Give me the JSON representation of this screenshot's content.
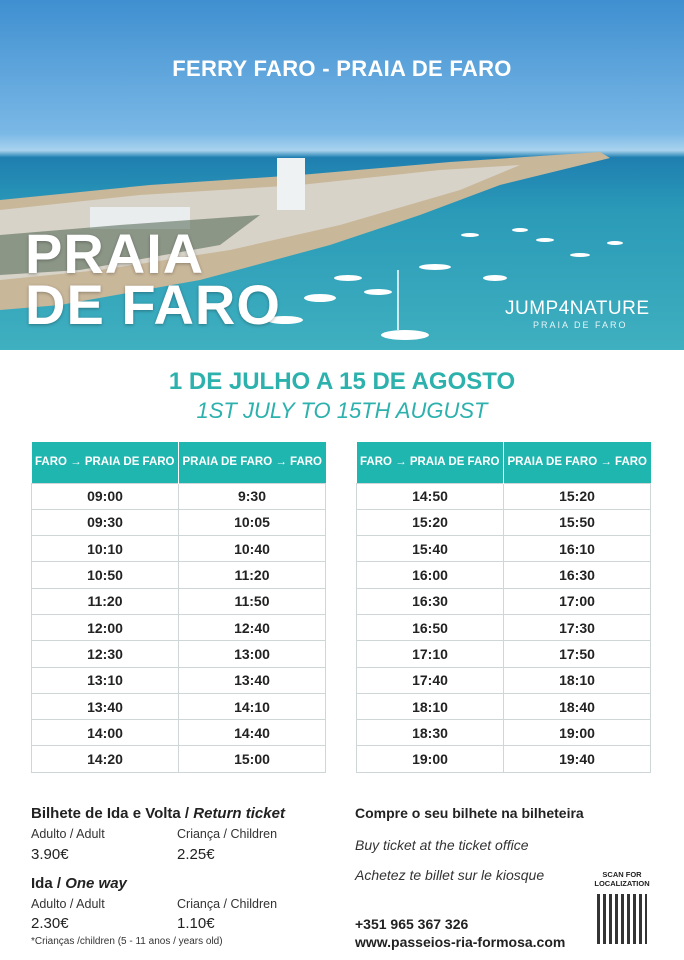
{
  "hero": {
    "title": "FERRY FARO - PRAIA DE FARO",
    "place_line1": "PRAIA",
    "place_line2": "DE FARO",
    "logo": "JUMP4NATURE",
    "logo_sub": "PRAIA DE FARO"
  },
  "period": {
    "pt": "1 DE JULHO  A 15 DE AGOSTO",
    "en": "1ST JULY TO 15TH AUGUST"
  },
  "headers": [
    "FARO → PRAIA DE FARO",
    "PRAIA DE FARO → FARO"
  ],
  "table1": [
    [
      "09:00",
      "9:30"
    ],
    [
      "09:30",
      "10:05"
    ],
    [
      "10:10",
      "10:40"
    ],
    [
      "10:50",
      "11:20"
    ],
    [
      "11:20",
      "11:50"
    ],
    [
      "12:00",
      "12:40"
    ],
    [
      "12:30",
      "13:00"
    ],
    [
      "13:10",
      "13:40"
    ],
    [
      "13:40",
      "14:10"
    ],
    [
      "14:00",
      "14:40"
    ],
    [
      "14:20",
      "15:00"
    ]
  ],
  "table2": [
    [
      "14:50",
      "15:20"
    ],
    [
      "15:20",
      "15:50"
    ],
    [
      "15:40",
      "16:10"
    ],
    [
      "16:00",
      "16:30"
    ],
    [
      "16:30",
      "17:00"
    ],
    [
      "16:50",
      "17:30"
    ],
    [
      "17:10",
      "17:50"
    ],
    [
      "17:40",
      "18:10"
    ],
    [
      "18:10",
      "18:40"
    ],
    [
      "18:30",
      "19:00"
    ],
    [
      "19:00",
      "19:40"
    ]
  ],
  "tickets": {
    "return_pt": "Bilhete de Ida e Volta / ",
    "return_en": "Return ticket",
    "adult": "Adulto / Adult",
    "child": "Criança / Children",
    "return_adult": "3.90€",
    "return_child": "2.25€",
    "oneway_pt": "Ida / ",
    "oneway_en": "One way",
    "oneway_adult": "2.30€",
    "oneway_child": "1.10€",
    "note": "*Crianças /children (5 - 11 anos / years old)"
  },
  "buy": {
    "pt": "Compre o seu bilhete na bilheteira",
    "en": "Buy ticket at the ticket office",
    "fr": "Achetez te billet sur le kiosque",
    "phone": "+351 965 367 326",
    "website": "www.passeios-ria-formosa.com",
    "qr_label": "SCAN FOR LOCALIZATION"
  },
  "colors": {
    "accent": "#1fb6b0"
  }
}
